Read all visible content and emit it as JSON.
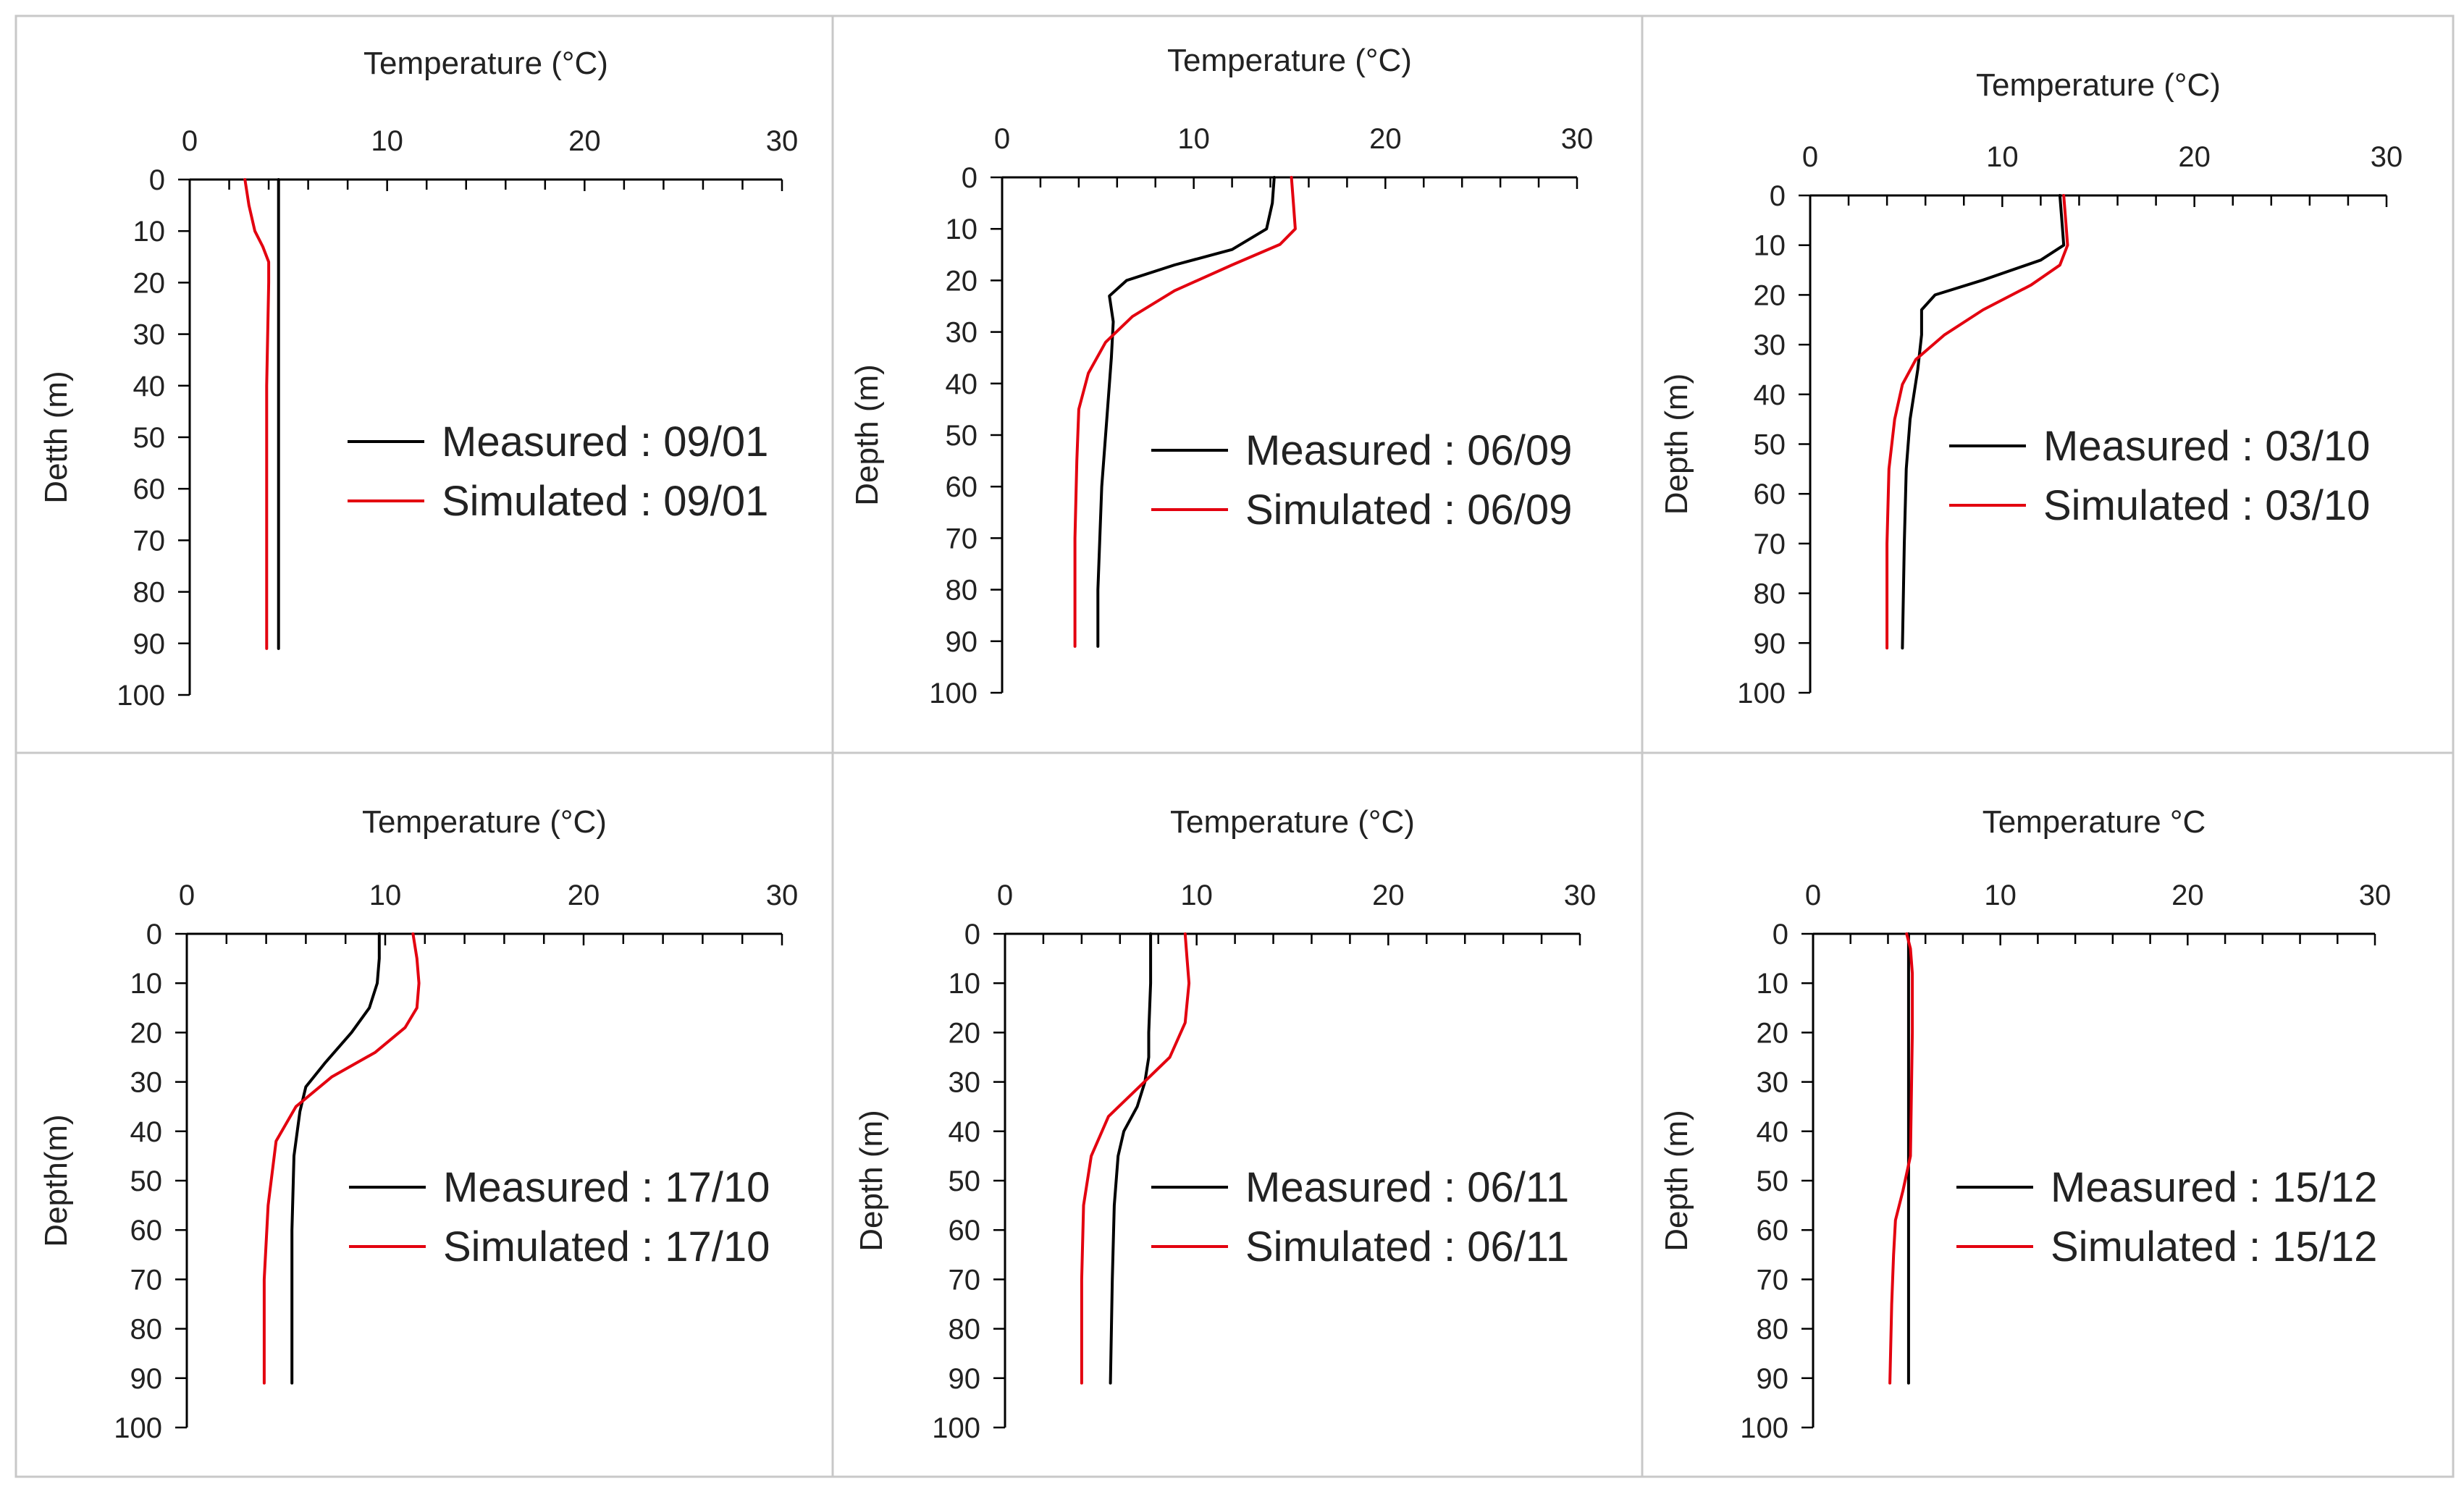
{
  "figure": {
    "colors": {
      "measured": "#000000",
      "simulated": "#e3000f",
      "border": "#c8c8c8"
    }
  },
  "chart_data": [
    {
      "type": "line",
      "xlabel": "Temperature (°C)",
      "ylabel": "Detth (m)",
      "xlim": [
        0,
        30
      ],
      "ylim": [
        0,
        100
      ],
      "xticks": [
        "0",
        "10",
        "20",
        "30"
      ],
      "yticks": [
        "0",
        "10",
        "20",
        "30",
        "40",
        "50",
        "60",
        "70",
        "80",
        "90",
        "100"
      ],
      "legend_position": "center-right",
      "series": [
        {
          "name": "Measured : 09/01",
          "role": "measured",
          "x": [
            4.5,
            4.5
          ],
          "y": [
            0,
            91
          ]
        },
        {
          "name": "Simulated : 09/01",
          "role": "simulated",
          "x": [
            2.8,
            3.0,
            3.3,
            3.7,
            4.0,
            4.0,
            3.9,
            3.9,
            3.9,
            3.9
          ],
          "y": [
            0,
            5,
            10,
            13,
            16,
            20,
            40,
            60,
            80,
            91
          ]
        }
      ]
    },
    {
      "type": "line",
      "xlabel": "Temperature (°C)",
      "ylabel": "Depth (m)",
      "xlim": [
        0,
        30
      ],
      "ylim": [
        0,
        100
      ],
      "xticks": [
        "0",
        "10",
        "20",
        "30"
      ],
      "yticks": [
        "0",
        "10",
        "20",
        "30",
        "40",
        "50",
        "60",
        "70",
        "80",
        "90",
        "100"
      ],
      "legend_position": "center-right",
      "series": [
        {
          "name": "Measured : 06/09",
          "role": "measured",
          "x": [
            14.2,
            14.1,
            13.8,
            12.0,
            9.0,
            6.5,
            5.6,
            5.8,
            5.7,
            5.5,
            5.2,
            5.0,
            5.0
          ],
          "y": [
            0,
            5,
            10,
            14,
            17,
            20,
            23,
            28,
            35,
            45,
            60,
            80,
            91
          ]
        },
        {
          "name": "Simulated : 06/09",
          "role": "simulated",
          "x": [
            15.1,
            15.2,
            15.3,
            14.5,
            12.0,
            9.0,
            6.8,
            5.4,
            4.5,
            4.0,
            3.9,
            3.8,
            3.8
          ],
          "y": [
            0,
            5,
            10,
            13,
            17,
            22,
            27,
            32,
            38,
            45,
            55,
            70,
            91
          ]
        }
      ]
    },
    {
      "type": "line",
      "xlabel": "Temperature (°C)",
      "ylabel": "Depth (m)",
      "xlim": [
        0,
        30
      ],
      "ylim": [
        0,
        100
      ],
      "xticks": [
        "0",
        "10",
        "20",
        "30"
      ],
      "yticks": [
        "0",
        "10",
        "20",
        "30",
        "40",
        "50",
        "60",
        "70",
        "80",
        "90",
        "100"
      ],
      "legend_position": "center-right",
      "series": [
        {
          "name": "Measured : 03/10",
          "role": "measured",
          "x": [
            13.0,
            13.1,
            13.2,
            12.0,
            9.0,
            6.5,
            5.8,
            5.8,
            5.6,
            5.2,
            5.0,
            4.9,
            4.8
          ],
          "y": [
            0,
            5,
            10,
            13,
            17,
            20,
            23,
            28,
            35,
            45,
            55,
            70,
            91
          ]
        },
        {
          "name": "Simulated : 03/10",
          "role": "simulated",
          "x": [
            13.2,
            13.3,
            13.4,
            13.0,
            11.5,
            9.0,
            7.0,
            5.5,
            4.8,
            4.4,
            4.1,
            4.0,
            4.0
          ],
          "y": [
            0,
            5,
            10,
            14,
            18,
            23,
            28,
            33,
            38,
            45,
            55,
            70,
            91
          ]
        }
      ]
    },
    {
      "type": "line",
      "xlabel": "Temperature (°C)",
      "ylabel": "Depth(m)",
      "xlim": [
        0,
        30
      ],
      "ylim": [
        0,
        100
      ],
      "xticks": [
        "0",
        "10",
        "20",
        "30"
      ],
      "yticks": [
        "0",
        "10",
        "20",
        "30",
        "40",
        "50",
        "60",
        "70",
        "80",
        "90",
        "100"
      ],
      "legend_position": "center-right",
      "series": [
        {
          "name": "Measured : 17/10",
          "role": "measured",
          "x": [
            9.7,
            9.7,
            9.6,
            9.2,
            8.3,
            7.0,
            6.0,
            5.7,
            5.4,
            5.3,
            5.3,
            5.3
          ],
          "y": [
            0,
            5,
            10,
            15,
            20,
            26,
            31,
            36,
            45,
            60,
            80,
            91
          ]
        },
        {
          "name": "Simulated : 17/10",
          "role": "simulated",
          "x": [
            11.4,
            11.6,
            11.7,
            11.6,
            11.0,
            9.5,
            7.3,
            5.5,
            4.5,
            4.1,
            3.9,
            3.9
          ],
          "y": [
            0,
            5,
            10,
            15,
            19,
            24,
            29,
            35,
            42,
            55,
            70,
            91
          ]
        }
      ]
    },
    {
      "type": "line",
      "xlabel": "Temperature (°C)",
      "ylabel": "Depth (m)",
      "xlim": [
        0,
        30
      ],
      "ylim": [
        0,
        100
      ],
      "xticks": [
        "0",
        "10",
        "20",
        "30"
      ],
      "yticks": [
        "0",
        "10",
        "20",
        "30",
        "40",
        "50",
        "60",
        "70",
        "80",
        "90",
        "100"
      ],
      "legend_position": "center-right",
      "series": [
        {
          "name": "Measured : 06/11",
          "role": "measured",
          "x": [
            7.6,
            7.6,
            7.5,
            7.5,
            7.3,
            6.9,
            6.2,
            5.9,
            5.7,
            5.6,
            5.5
          ],
          "y": [
            0,
            10,
            20,
            25,
            30,
            35,
            40,
            45,
            55,
            70,
            91
          ]
        },
        {
          "name": "Simulated : 06/11",
          "role": "simulated",
          "x": [
            9.4,
            9.5,
            9.6,
            9.4,
            8.6,
            7.0,
            5.4,
            4.5,
            4.1,
            4.0,
            4.0
          ],
          "y": [
            0,
            5,
            10,
            18,
            25,
            31,
            37,
            45,
            55,
            70,
            91
          ]
        }
      ]
    },
    {
      "type": "line",
      "xlabel": "Temperature °C",
      "ylabel": "Depth (m)",
      "xlim": [
        0,
        30
      ],
      "ylim": [
        0,
        100
      ],
      "xticks": [
        "0",
        "10",
        "20",
        "30"
      ],
      "yticks": [
        "0",
        "10",
        "20",
        "30",
        "40",
        "50",
        "60",
        "70",
        "80",
        "90",
        "100"
      ],
      "legend_position": "center-right",
      "series": [
        {
          "name": "Measured : 15/12",
          "role": "measured",
          "x": [
            5.1,
            5.1
          ],
          "y": [
            0,
            91
          ]
        },
        {
          "name": "Simulated : 15/12",
          "role": "simulated",
          "x": [
            5.0,
            5.2,
            5.3,
            5.3,
            5.2,
            4.8,
            4.4,
            4.3,
            4.2,
            4.1
          ],
          "y": [
            0,
            3,
            8,
            20,
            45,
            52,
            58,
            65,
            75,
            91
          ]
        }
      ]
    }
  ]
}
